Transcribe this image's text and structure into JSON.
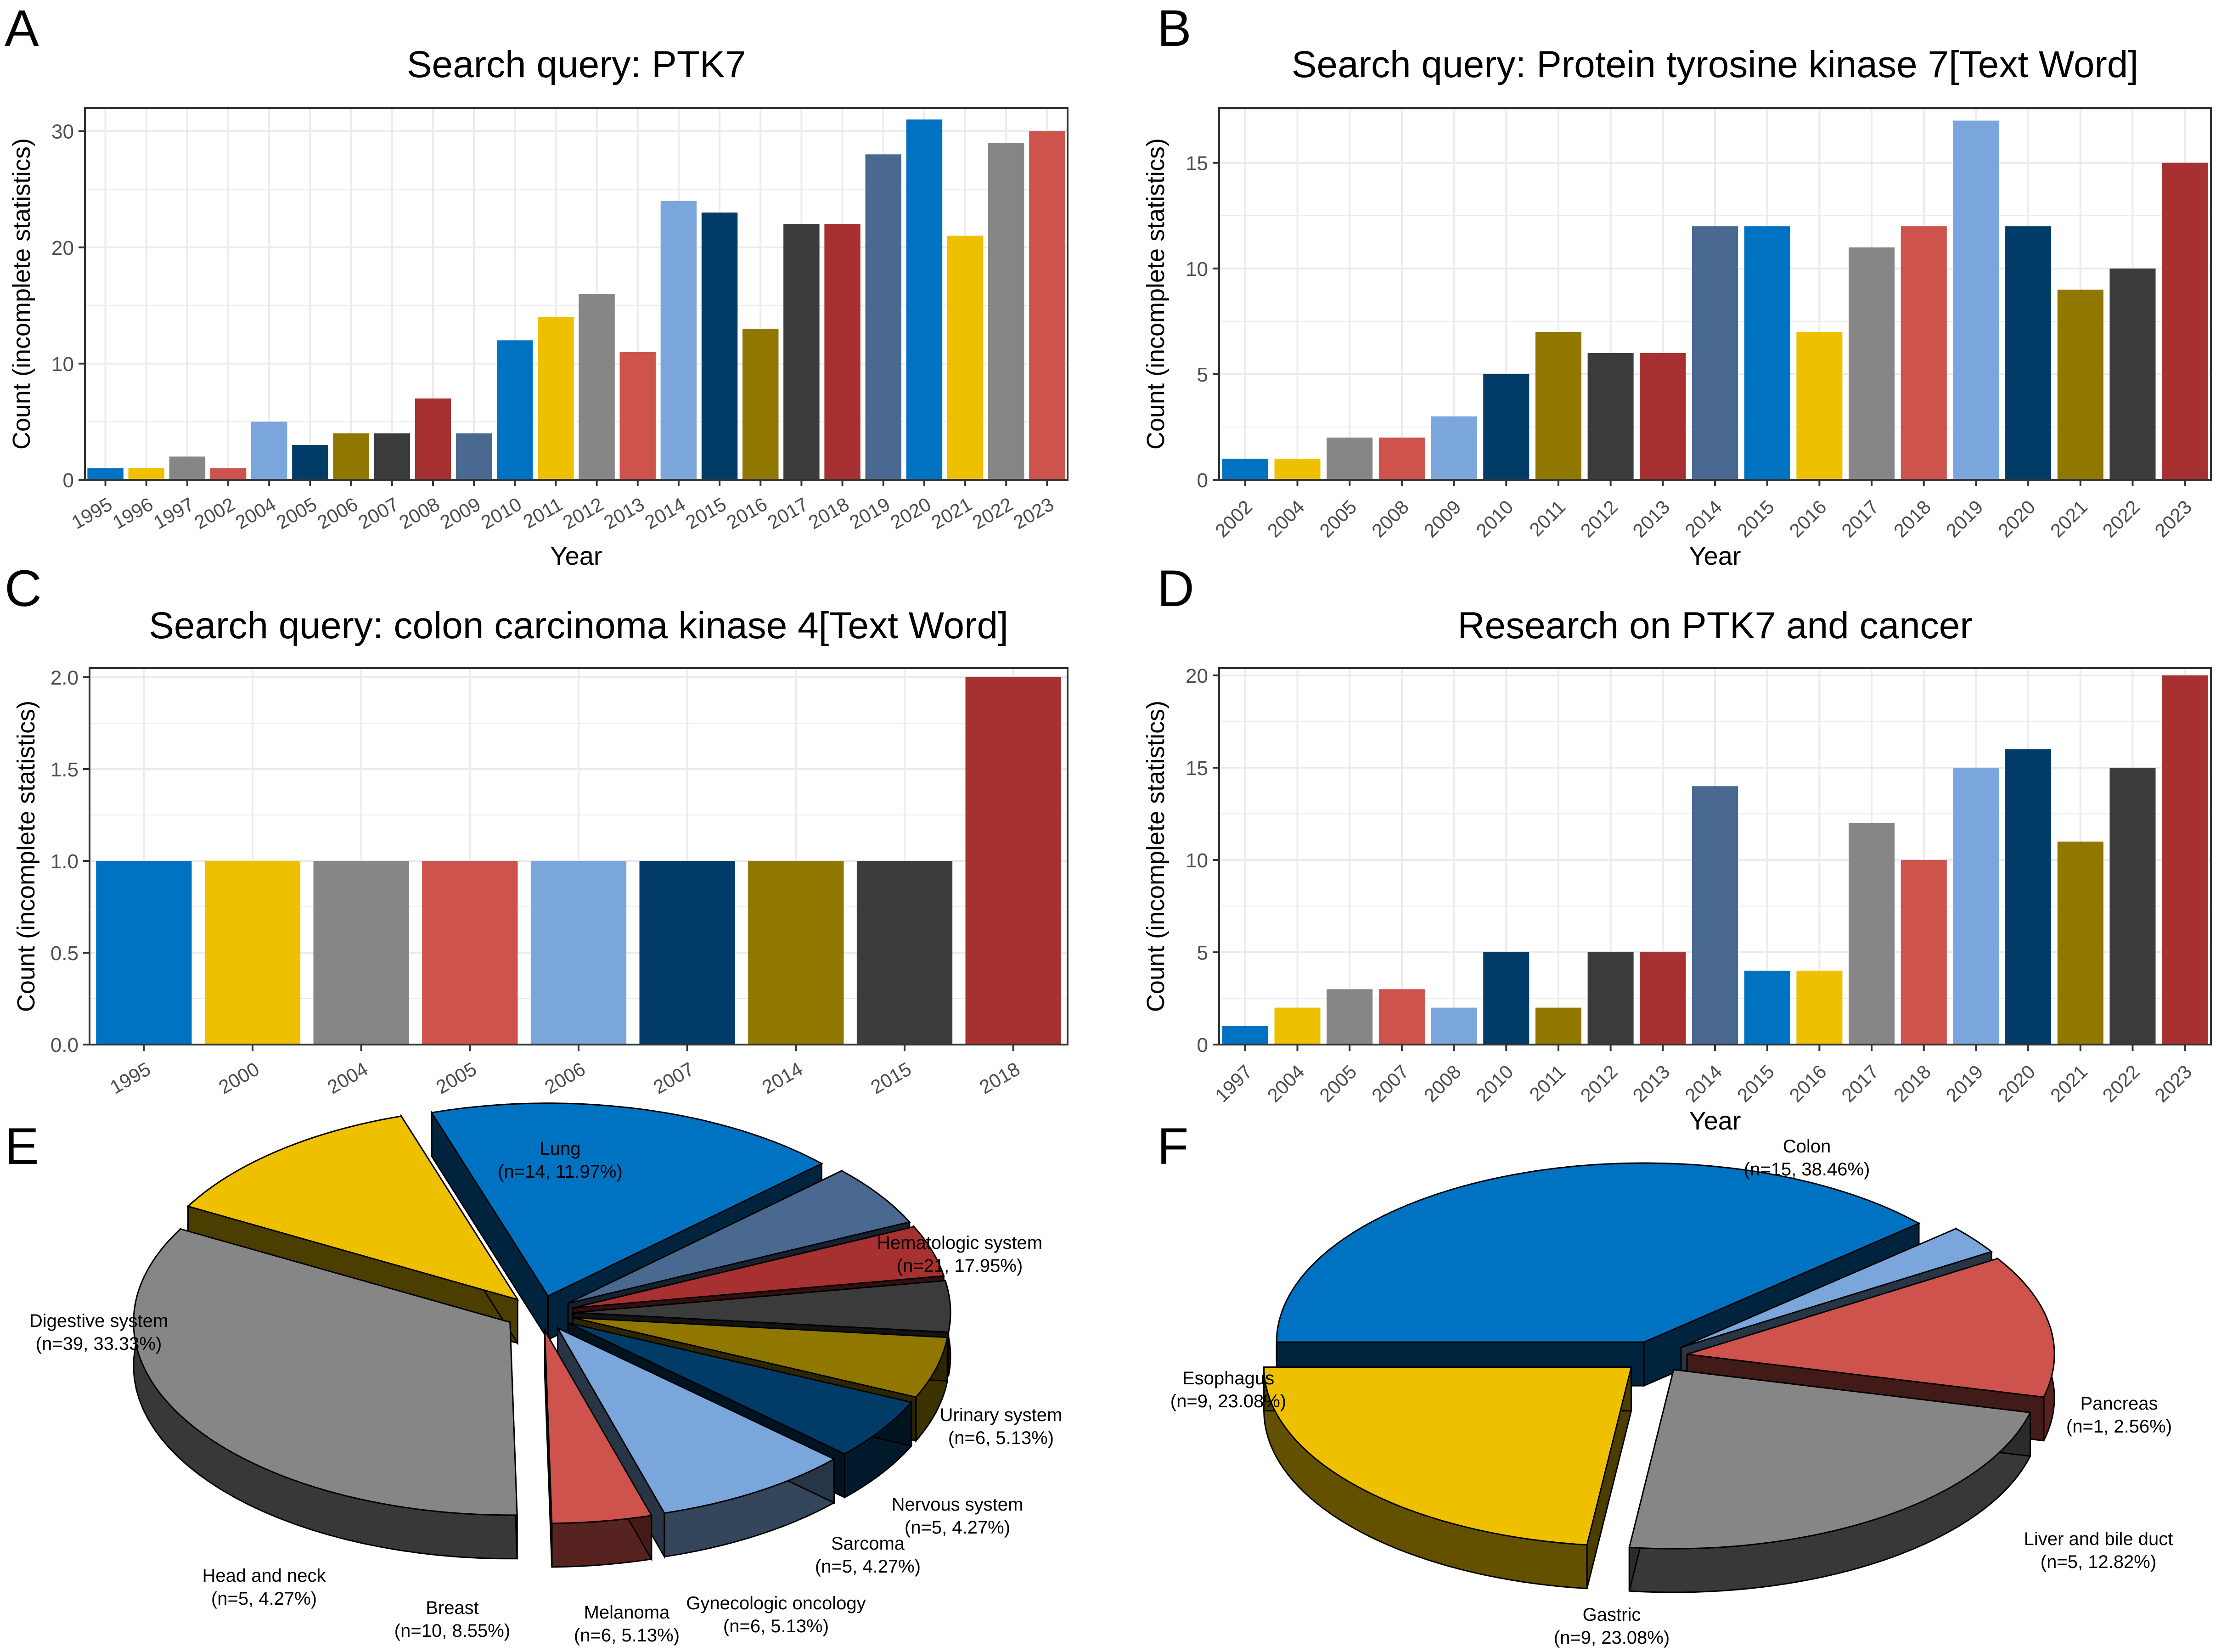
{
  "palette": [
    "#0072C2",
    "#EFC000",
    "#868686",
    "#CD534C",
    "#7AA6DC",
    "#003C67",
    "#8F7700",
    "#3B3B3B",
    "#A73030",
    "#4A6990"
  ],
  "chart_data": [
    {
      "id": "A",
      "type": "bar",
      "panel_label": "A",
      "title": "Search query: PTK7",
      "xlabel": "Year",
      "ylabel": "Count (incomplete statistics)",
      "ylim": [
        0,
        32
      ],
      "yticks": [
        0,
        10,
        20,
        30
      ],
      "grid": true,
      "categories": [
        "1995",
        "1996",
        "1997",
        "2002",
        "2004",
        "2005",
        "2006",
        "2007",
        "2008",
        "2009",
        "2010",
        "2011",
        "2012",
        "2013",
        "2014",
        "2015",
        "2016",
        "2017",
        "2018",
        "2019",
        "2020",
        "2021",
        "2022",
        "2023"
      ],
      "values": [
        1,
        1,
        2,
        1,
        5,
        3,
        4,
        4,
        7,
        4,
        12,
        14,
        16,
        11,
        24,
        23,
        13,
        22,
        22,
        28,
        31,
        21,
        29,
        30
      ],
      "tick_rotation": -30
    },
    {
      "id": "B",
      "type": "bar",
      "panel_label": "B",
      "title": "Search query: Protein tyrosine kinase 7[Text Word]",
      "xlabel": "Year",
      "ylabel": "Count (incomplete statistics)",
      "ylim": [
        0,
        17.6
      ],
      "yticks": [
        0,
        5,
        10,
        15
      ],
      "grid": true,
      "categories": [
        "2002",
        "2004",
        "2005",
        "2008",
        "2009",
        "2010",
        "2011",
        "2012",
        "2013",
        "2014",
        "2015",
        "2016",
        "2017",
        "2018",
        "2019",
        "2020",
        "2021",
        "2022",
        "2023"
      ],
      "values": [
        1,
        1,
        2,
        2,
        3,
        5,
        7,
        6,
        6,
        12,
        12,
        7,
        11,
        12,
        17,
        12,
        9,
        10,
        15
      ],
      "tick_rotation": -45
    },
    {
      "id": "C",
      "type": "bar",
      "panel_label": "C",
      "title": "Search query: colon carcinoma kinase 4[Text Word]",
      "xlabel": "Year",
      "ylabel": "Count (incomplete statistics)",
      "ylim": [
        0,
        2.05
      ],
      "yticks": [
        "0.0",
        "0.5",
        "1.0",
        "1.5",
        "2.0"
      ],
      "grid": true,
      "categories": [
        "1995",
        "2000",
        "2004",
        "2005",
        "2006",
        "2007",
        "2014",
        "2015",
        "2018"
      ],
      "values": [
        1,
        1,
        1,
        1,
        1,
        1,
        1,
        1,
        2
      ],
      "tick_rotation": -30
    },
    {
      "id": "D",
      "type": "bar",
      "panel_label": "D",
      "title": "Research on PTK7 and cancer",
      "xlabel": "Year",
      "ylabel": "Count (incomplete statistics)",
      "ylim": [
        0,
        20.4
      ],
      "yticks": [
        0,
        5,
        10,
        15,
        20
      ],
      "grid": true,
      "categories": [
        "1997",
        "2004",
        "2005",
        "2007",
        "2008",
        "2010",
        "2011",
        "2012",
        "2013",
        "2014",
        "2015",
        "2016",
        "2017",
        "2018",
        "2019",
        "2020",
        "2021",
        "2022",
        "2023"
      ],
      "values": [
        1,
        2,
        3,
        3,
        2,
        5,
        2,
        5,
        5,
        14,
        4,
        4,
        12,
        10,
        15,
        16,
        11,
        15,
        20
      ],
      "tick_rotation": -45
    },
    {
      "id": "E",
      "type": "pie",
      "panel_label": "E",
      "slices": [
        {
          "label": "Hematologic system",
          "detail": "(n=21, 17.95%)",
          "value": 21,
          "color": "#0072C2"
        },
        {
          "label": "Urinary system",
          "detail": "(n=6, 5.13%)",
          "value": 6,
          "color": "#4A6990"
        },
        {
          "label": "Nervous system",
          "detail": "(n=5, 4.27%)",
          "value": 5,
          "color": "#A73030"
        },
        {
          "label": "Sarcoma",
          "detail": "(n=5, 4.27%)",
          "value": 5,
          "color": "#3B3B3B"
        },
        {
          "label": "Gynecologic oncology",
          "detail": "(n=6, 5.13%)",
          "value": 6,
          "color": "#8F7700"
        },
        {
          "label": "Melanoma",
          "detail": "(n=6, 5.13%)",
          "value": 6,
          "color": "#003C67"
        },
        {
          "label": "Breast",
          "detail": "(n=10, 8.55%)",
          "value": 10,
          "color": "#7AA6DC"
        },
        {
          "label": "Head and neck",
          "detail": "(n=5, 4.27%)",
          "value": 5,
          "color": "#CD534C"
        },
        {
          "label": "Digestive system",
          "detail": "(n=39, 33.33%)",
          "value": 39,
          "color": "#868686"
        },
        {
          "label": "Lung",
          "detail": "(n=14, 11.97%)",
          "value": 14,
          "color": "#EFC000"
        }
      ]
    },
    {
      "id": "F",
      "type": "pie",
      "panel_label": "F",
      "slices": [
        {
          "label": "Colon",
          "detail": "(n=15, 38.46%)",
          "value": 15,
          "color": "#0072C2"
        },
        {
          "label": "Pancreas",
          "detail": "(n=1, 2.56%)",
          "value": 1,
          "color": "#7AA6DC"
        },
        {
          "label": "Liver and bile duct",
          "detail": "(n=5, 12.82%)",
          "value": 5,
          "color": "#CD534C"
        },
        {
          "label": "Gastric",
          "detail": "(n=9, 23.08%)",
          "value": 9,
          "color": "#868686"
        },
        {
          "label": "Esophagus",
          "detail": "(n=9, 23.08%)",
          "value": 9,
          "color": "#EFC000"
        }
      ]
    }
  ]
}
